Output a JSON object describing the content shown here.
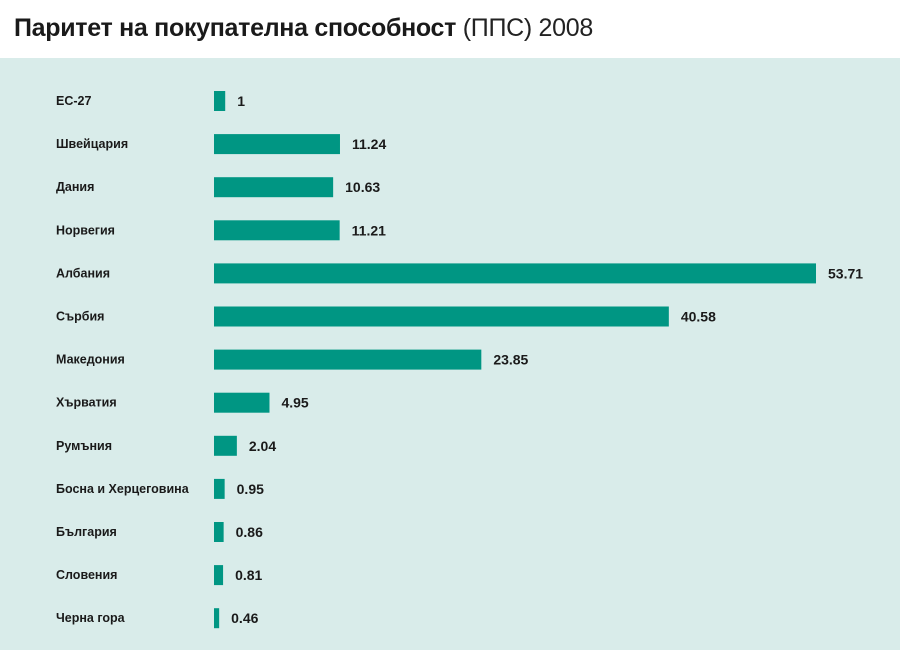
{
  "chart_data": {
    "type": "bar",
    "orientation": "horizontal",
    "title": "Паритет на покупателна способност",
    "title_suffix": "(ППС) 2008",
    "categories": [
      "ЕС-27",
      "Швейцария",
      "Дания",
      "Норвегия",
      "Албания",
      "Сърбия",
      "Македония",
      "Хърватия",
      "Румъния",
      "Босна и Херцеговина",
      "България",
      "Словения",
      "Черна гора"
    ],
    "values": [
      1,
      11.24,
      10.63,
      11.21,
      53.71,
      40.58,
      23.85,
      4.95,
      2.04,
      0.95,
      0.86,
      0.81,
      0.46
    ],
    "value_labels": [
      "1",
      "11.24",
      "10.63",
      "11.21",
      "53.71",
      "40.58",
      "23.85",
      "4.95",
      "2.04",
      "0.95",
      "0.86",
      "0.81",
      "0.46"
    ],
    "xlabel": "",
    "ylabel": "",
    "xlim": [
      0,
      53.71
    ],
    "grid": false,
    "legend": "none",
    "colors": {
      "bar": "#009683",
      "background": "#d9ecea",
      "title_background": "#ffffff"
    }
  }
}
